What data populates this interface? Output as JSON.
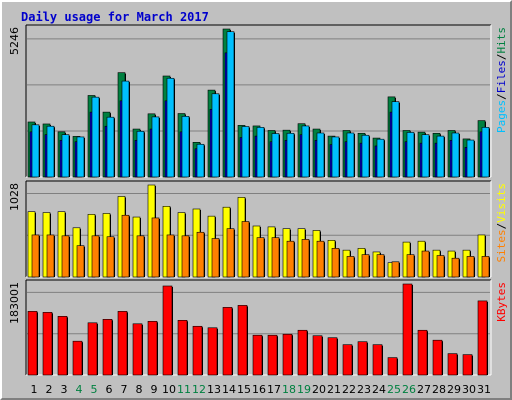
{
  "title": "Daily usage for March 2017",
  "chart_data": {
    "type": "bar",
    "categories": [
      "1",
      "2",
      "3",
      "4",
      "5",
      "6",
      "7",
      "8",
      "9",
      "10",
      "11",
      "12",
      "13",
      "14",
      "15",
      "16",
      "17",
      "18",
      "19",
      "20",
      "21",
      "22",
      "23",
      "24",
      "25",
      "26",
      "27",
      "28",
      "29",
      "30",
      "31"
    ],
    "weekend_days": [
      "4",
      "5",
      "11",
      "12",
      "18",
      "19",
      "25",
      "26"
    ],
    "colors": {
      "hits": "#008040",
      "files": "#0000cc",
      "pages": "#00c0ff",
      "visits": "#ffff00",
      "sites": "#ff8000",
      "kbytes": "#ff0000",
      "date_normal": "#000000",
      "date_weekend": "#008040",
      "background": "#c0c0c0",
      "grid": "#808080"
    },
    "panels": [
      {
        "name": "hits-files-pages",
        "max_label": "5246",
        "ylim": [
          0,
          5246
        ],
        "legend": [
          {
            "text": "Pages",
            "color": "#00c0ff"
          },
          {
            "text": "/",
            "color": "#000000"
          },
          {
            "text": "Files",
            "color": "#0000cc"
          },
          {
            "text": "/",
            "color": "#000000"
          },
          {
            "text": "Hits",
            "color": "#008040"
          }
        ],
        "series": [
          {
            "name": "Hits",
            "color": "#008040",
            "values": [
              1950,
              1880,
              1600,
              1440,
              2890,
              2300,
              3700,
              1700,
              2240,
              3580,
              2250,
              1230,
              3080,
              5246,
              1830,
              1810,
              1650,
              1660,
              1890,
              1700,
              1450,
              1650,
              1550,
              1380,
              2840,
              1650,
              1590,
              1550,
              1650,
              1350,
              2000
            ]
          },
          {
            "name": "Files",
            "color": "#0000cc",
            "values": [
              1600,
              1500,
              1300,
              1250,
              2300,
              1800,
              2700,
              1300,
              1700,
              2700,
              1600,
              1000,
              2400,
              4400,
              1400,
              1450,
              1250,
              1300,
              1500,
              1300,
              1150,
              1250,
              1200,
              1100,
              2300,
              1250,
              1200,
              1200,
              1300,
              1050,
              1600
            ]
          },
          {
            "name": "Pages",
            "color": "#00c0ff",
            "values": [
              1850,
              1800,
              1500,
              1420,
              2830,
              2120,
              3400,
              1620,
              2130,
              3500,
              2150,
              1160,
              2950,
              5150,
              1790,
              1760,
              1540,
              1550,
              1810,
              1560,
              1420,
              1560,
              1480,
              1340,
              2670,
              1580,
              1500,
              1450,
              1560,
              1310,
              1760
            ]
          }
        ]
      },
      {
        "name": "visits-sites",
        "max_label": "1028",
        "ylim": [
          0,
          1028
        ],
        "legend": [
          {
            "text": "Sites",
            "color": "#ff8000"
          },
          {
            "text": "/",
            "color": "#000000"
          },
          {
            "text": "Visits",
            "color": "#ffff00"
          }
        ],
        "series": [
          {
            "name": "Visits",
            "color": "#ffff00",
            "values": [
              730,
              720,
              730,
              550,
              700,
              710,
              900,
              670,
              1028,
              790,
              720,
              760,
              680,
              780,
              890,
              570,
              560,
              540,
              540,
              520,
              410,
              300,
              320,
              280,
              160,
              390,
              400,
              300,
              290,
              300,
              470
            ]
          },
          {
            "name": "Sites",
            "color": "#ff8000",
            "values": [
              470,
              470,
              460,
              350,
              460,
              450,
              690,
              460,
              660,
              470,
              460,
              500,
              430,
              540,
              620,
              440,
              440,
              400,
              420,
              400,
              320,
              230,
              250,
              250,
              170,
              250,
              290,
              240,
              210,
              230,
              230
            ]
          }
        ]
      },
      {
        "name": "kbytes",
        "max_label": "183001",
        "ylim": [
          0,
          183001
        ],
        "legend": [
          {
            "text": "KBytes",
            "color": "#ff0000"
          }
        ],
        "series": [
          {
            "name": "KBytes",
            "color": "#ff0000",
            "values": [
              128000,
              126000,
              118000,
              68000,
              105000,
              112000,
              128000,
              103000,
              108000,
              179000,
              110000,
              98000,
              95000,
              136000,
              140000,
              80000,
              80000,
              82000,
              90000,
              79000,
              75000,
              61000,
              67000,
              61000,
              35000,
              183001,
              90000,
              70000,
              43000,
              41000,
              149000
            ]
          }
        ]
      }
    ]
  }
}
